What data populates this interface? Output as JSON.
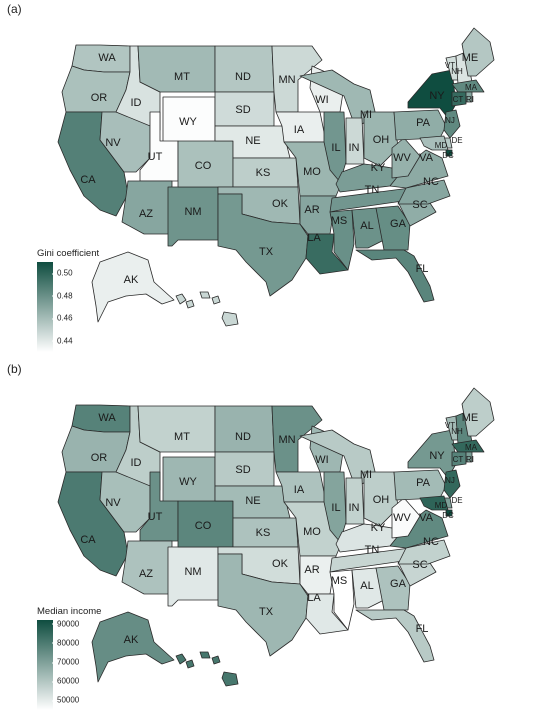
{
  "panels": [
    {
      "label": "(a)",
      "legend": {
        "title": "Gini coefficient",
        "ticks": [
          "0.50",
          "0.48",
          "0.46",
          "0.44"
        ],
        "min": 0.43,
        "max": 0.51
      },
      "states": {
        "WA": 0.456,
        "OR": 0.458,
        "CA": 0.487,
        "NV": 0.459,
        "ID": 0.443,
        "MT": 0.461,
        "WY": 0.431,
        "UT": 0.431,
        "AZ": 0.47,
        "NM": 0.478,
        "CO": 0.458,
        "ND": 0.455,
        "SD": 0.446,
        "NE": 0.44,
        "KS": 0.452,
        "OK": 0.462,
        "TX": 0.476,
        "MN": 0.447,
        "IA": 0.437,
        "MO": 0.463,
        "AR": 0.47,
        "LA": 0.496,
        "WI": 0.437,
        "IL": 0.477,
        "MI": 0.462,
        "IN": 0.447,
        "OH": 0.463,
        "KY": 0.474,
        "TN": 0.477,
        "MS": 0.48,
        "AL": 0.479,
        "GA": 0.481,
        "FL": 0.485,
        "SC": 0.467,
        "NC": 0.47,
        "VA": 0.468,
        "WV": 0.465,
        "PA": 0.467,
        "NY": 0.51,
        "VT": 0.445,
        "NH": 0.442,
        "ME": 0.455,
        "MA": 0.483,
        "CT": 0.497,
        "RI": 0.47,
        "NJ": 0.483,
        "DE": 0.454,
        "MD": 0.459,
        "DC": 0.512,
        "AK": 0.437,
        "HI": 0.448
      }
    },
    {
      "label": "(b)",
      "legend": {
        "title": "Median income",
        "ticks": [
          "90000",
          "80000",
          "70000",
          "60000",
          "50000"
        ],
        "min": 45000,
        "max": 92000
      },
      "states": {
        "WA": 78000,
        "OR": 65000,
        "CA": 80000,
        "NV": 62000,
        "ID": 58000,
        "MT": 57000,
        "WY": 64000,
        "UT": 74000,
        "AZ": 61000,
        "NM": 51000,
        "CO": 77000,
        "ND": 65000,
        "SD": 59000,
        "NE": 63000,
        "KS": 61000,
        "OK": 54000,
        "TX": 64000,
        "MN": 74000,
        "IA": 61000,
        "MO": 57000,
        "AR": 49000,
        "LA": 51000,
        "WI": 64000,
        "IL": 69000,
        "MI": 59000,
        "IN": 57000,
        "OH": 58000,
        "KY": 52000,
        "TN": 56000,
        "MS": 45000,
        "AL": 51000,
        "GA": 61000,
        "FL": 59000,
        "SC": 56000,
        "NC": 57000,
        "VA": 76000,
        "WV": 46000,
        "PA": 63000,
        "NY": 72000,
        "VT": 63000,
        "NH": 77000,
        "ME": 58000,
        "MA": 85000,
        "CT": 78000,
        "RI": 71000,
        "NJ": 85000,
        "DE": 70000,
        "MD": 86000,
        "DC": 92000,
        "AK": 75000,
        "HI": 81000
      }
    }
  ],
  "colors": {
    "low": "#ffffff",
    "high": "#0f4d40"
  }
}
